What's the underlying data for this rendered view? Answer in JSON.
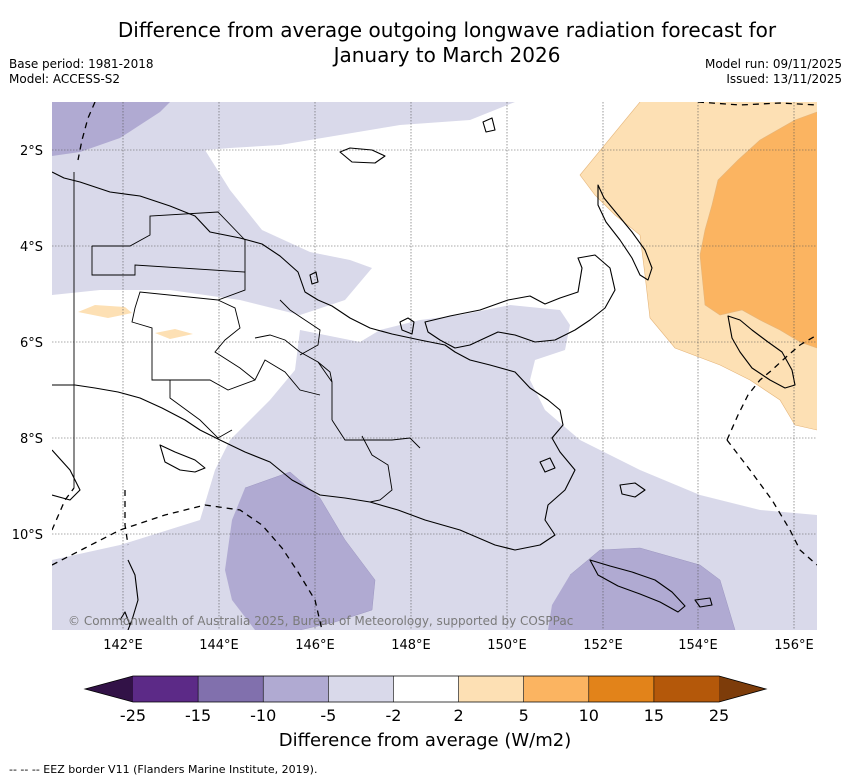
{
  "title": {
    "line1": "Difference from average outgoing longwave radiation forecast for",
    "line2": "January to March 2026"
  },
  "meta": {
    "base_period": "Base period: 1981-2018",
    "model": "Model: ACCESS-S2",
    "model_run": "Model run: 09/11/2025",
    "issued": "Issued: 13/11/2025"
  },
  "map": {
    "lon_ticks": [
      "142°E",
      "144°E",
      "146°E",
      "148°E",
      "150°E",
      "152°E",
      "154°E",
      "156°E"
    ],
    "lat_ticks": [
      "2°S",
      "4°S",
      "6°S",
      "8°S",
      "10°S"
    ],
    "copyright": "© Commonwealth of Australia 2025, Bureau of Meteorology, supported by COSPPac"
  },
  "colorbar": {
    "label": "Difference from average (W/m2)",
    "ticks": [
      "-25",
      "-15",
      "-10",
      "-5",
      "-2",
      "2",
      "5",
      "10",
      "15",
      "25"
    ],
    "colors": [
      "#5c2a87",
      "#8170ad",
      "#b0aad2",
      "#d9d9ea",
      "#ffffff",
      "#fde0b4",
      "#fbb461",
      "#e2831a",
      "#b4580a"
    ],
    "under_color": "#321247",
    "over_color": "#7d3c0a"
  },
  "footnote": "--  --  -- EEZ border V11 (Flanders Marine Institute, 2019)."
}
